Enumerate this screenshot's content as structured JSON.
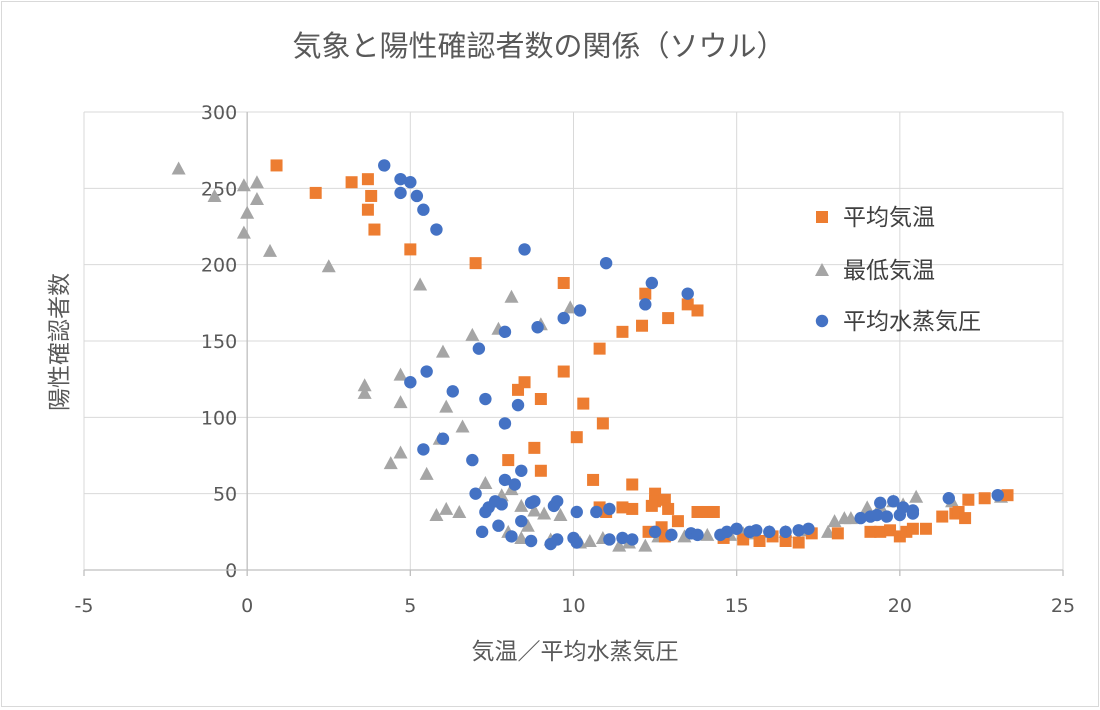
{
  "chart_data": {
    "type": "scatter",
    "title": "気象と陽性確認者数の関係（ソウル）",
    "xlabel": "気温／平均水蒸気圧",
    "ylabel": "陽性確認者数",
    "xlim": [
      -5,
      25
    ],
    "ylim": [
      0,
      300
    ],
    "xticks": [
      -5,
      0,
      5,
      10,
      15,
      20,
      25
    ],
    "yticks": [
      0,
      50,
      100,
      150,
      200,
      250,
      300
    ],
    "xtick_labels": [
      "-5",
      "0",
      "5",
      "10",
      "15",
      "20",
      "25"
    ],
    "ytick_labels": [
      "0",
      "50",
      "100",
      "150",
      "200",
      "250",
      "300"
    ],
    "grid": true,
    "legend_position": "right",
    "series": [
      {
        "name": "平均気温",
        "marker": "square",
        "color": "#ED7D31",
        "points": [
          [
            0.9,
            265
          ],
          [
            2.1,
            247
          ],
          [
            3.2,
            254
          ],
          [
            3.7,
            256
          ],
          [
            3.7,
            236
          ],
          [
            3.8,
            245
          ],
          [
            3.9,
            223
          ],
          [
            5.0,
            210
          ],
          [
            7.0,
            201
          ],
          [
            9.7,
            188
          ],
          [
            12.2,
            181
          ],
          [
            13.5,
            174
          ],
          [
            13.8,
            170
          ],
          [
            12.9,
            165
          ],
          [
            12.1,
            160
          ],
          [
            11.5,
            156
          ],
          [
            10.8,
            145
          ],
          [
            9.7,
            130
          ],
          [
            8.5,
            123
          ],
          [
            8.3,
            118
          ],
          [
            9.0,
            112
          ],
          [
            10.3,
            109
          ],
          [
            10.9,
            96
          ],
          [
            10.1,
            87
          ],
          [
            8.8,
            80
          ],
          [
            8.0,
            72
          ],
          [
            9.0,
            65
          ],
          [
            10.6,
            59
          ],
          [
            11.8,
            56
          ],
          [
            12.5,
            50
          ],
          [
            12.5,
            45
          ],
          [
            12.8,
            46
          ],
          [
            12.9,
            40
          ],
          [
            12.4,
            42
          ],
          [
            11.8,
            40
          ],
          [
            11.5,
            41
          ],
          [
            10.8,
            41
          ],
          [
            11.0,
            38
          ],
          [
            13.8,
            38
          ],
          [
            14.1,
            38
          ],
          [
            14.3,
            38
          ],
          [
            13.2,
            32
          ],
          [
            12.7,
            28
          ],
          [
            12.3,
            25
          ],
          [
            12.8,
            22
          ],
          [
            14.6,
            21
          ],
          [
            15.2,
            20
          ],
          [
            15.7,
            19
          ],
          [
            16.1,
            22
          ],
          [
            16.5,
            19
          ],
          [
            16.9,
            18
          ],
          [
            17.3,
            24
          ],
          [
            18.1,
            24
          ],
          [
            19.1,
            25
          ],
          [
            19.4,
            25
          ],
          [
            19.7,
            26
          ],
          [
            20.0,
            22
          ],
          [
            20.2,
            25
          ],
          [
            20.4,
            27
          ],
          [
            20.8,
            27
          ],
          [
            21.3,
            35
          ],
          [
            21.7,
            37
          ],
          [
            21.8,
            38
          ],
          [
            22.1,
            46
          ],
          [
            22.6,
            47
          ],
          [
            23.3,
            49
          ],
          [
            22.0,
            34
          ]
        ]
      },
      {
        "name": "最低気温",
        "marker": "triangle",
        "color": "#A5A5A5",
        "points": [
          [
            -2.1,
            263
          ],
          [
            -1.0,
            245
          ],
          [
            -0.1,
            252
          ],
          [
            0.3,
            254
          ],
          [
            0.0,
            234
          ],
          [
            0.3,
            243
          ],
          [
            -0.1,
            221
          ],
          [
            0.7,
            209
          ],
          [
            2.5,
            199
          ],
          [
            5.3,
            187
          ],
          [
            8.1,
            179
          ],
          [
            9.9,
            172
          ],
          [
            7.7,
            158
          ],
          [
            9.0,
            161
          ],
          [
            6.9,
            154
          ],
          [
            6.0,
            143
          ],
          [
            3.6,
            121
          ],
          [
            3.6,
            116
          ],
          [
            4.7,
            128
          ],
          [
            4.7,
            110
          ],
          [
            6.1,
            107
          ],
          [
            5.9,
            86
          ],
          [
            6.6,
            94
          ],
          [
            4.4,
            70
          ],
          [
            4.7,
            77
          ],
          [
            5.5,
            63
          ],
          [
            5.8,
            36
          ],
          [
            6.1,
            40
          ],
          [
            6.5,
            38
          ],
          [
            7.3,
            57
          ],
          [
            7.8,
            49
          ],
          [
            8.1,
            53
          ],
          [
            8.4,
            42
          ],
          [
            8.8,
            39
          ],
          [
            8.6,
            29
          ],
          [
            8.0,
            25
          ],
          [
            8.4,
            21
          ],
          [
            9.1,
            37
          ],
          [
            9.6,
            36
          ],
          [
            9.3,
            20
          ],
          [
            10.2,
            18
          ],
          [
            10.5,
            19
          ],
          [
            10.9,
            21
          ],
          [
            11.4,
            16
          ],
          [
            11.7,
            18
          ],
          [
            12.2,
            16
          ],
          [
            12.6,
            22
          ],
          [
            13.4,
            22
          ],
          [
            14.1,
            23
          ],
          [
            14.8,
            23
          ],
          [
            15.2,
            24
          ],
          [
            15.6,
            24
          ],
          [
            16.0,
            25
          ],
          [
            16.5,
            25
          ],
          [
            17.2,
            26
          ],
          [
            17.8,
            25
          ],
          [
            18.0,
            32
          ],
          [
            18.3,
            34
          ],
          [
            18.5,
            34
          ],
          [
            19.0,
            41
          ],
          [
            19.4,
            42
          ],
          [
            19.8,
            45
          ],
          [
            20.1,
            43
          ],
          [
            20.5,
            48
          ],
          [
            21.6,
            45
          ],
          [
            23.1,
            48
          ]
        ]
      },
      {
        "name": "平均水蒸気圧",
        "marker": "circle",
        "color": "#4472C4",
        "points": [
          [
            4.2,
            265
          ],
          [
            4.7,
            256
          ],
          [
            5.0,
            254
          ],
          [
            4.7,
            247
          ],
          [
            5.2,
            245
          ],
          [
            5.4,
            236
          ],
          [
            5.8,
            223
          ],
          [
            8.5,
            210
          ],
          [
            11.0,
            201
          ],
          [
            12.4,
            188
          ],
          [
            13.5,
            181
          ],
          [
            12.2,
            174
          ],
          [
            10.2,
            170
          ],
          [
            9.7,
            165
          ],
          [
            8.9,
            159
          ],
          [
            7.9,
            156
          ],
          [
            7.1,
            145
          ],
          [
            5.5,
            130
          ],
          [
            5.0,
            123
          ],
          [
            6.3,
            117
          ],
          [
            7.3,
            112
          ],
          [
            8.3,
            108
          ],
          [
            7.9,
            96
          ],
          [
            6.0,
            86
          ],
          [
            5.4,
            79
          ],
          [
            6.9,
            72
          ],
          [
            8.2,
            56
          ],
          [
            8.4,
            65
          ],
          [
            7.9,
            59
          ],
          [
            7.0,
            50
          ],
          [
            7.4,
            41
          ],
          [
            7.3,
            38
          ],
          [
            7.6,
            45
          ],
          [
            7.8,
            43
          ],
          [
            8.8,
            45
          ],
          [
            8.7,
            44
          ],
          [
            9.5,
            45
          ],
          [
            9.4,
            42
          ],
          [
            10.1,
            38
          ],
          [
            10.7,
            38
          ],
          [
            11.1,
            40
          ],
          [
            8.4,
            32
          ],
          [
            7.7,
            29
          ],
          [
            7.2,
            25
          ],
          [
            8.1,
            22
          ],
          [
            8.7,
            19
          ],
          [
            9.3,
            17
          ],
          [
            9.5,
            20
          ],
          [
            10.0,
            21
          ],
          [
            10.1,
            18
          ],
          [
            11.1,
            20
          ],
          [
            11.5,
            21
          ],
          [
            11.8,
            20
          ],
          [
            12.5,
            25
          ],
          [
            13.0,
            23
          ],
          [
            13.6,
            24
          ],
          [
            13.8,
            23
          ],
          [
            14.5,
            23
          ],
          [
            14.7,
            25
          ],
          [
            15.0,
            27
          ],
          [
            15.4,
            25
          ],
          [
            15.6,
            26
          ],
          [
            16.0,
            25
          ],
          [
            16.5,
            25
          ],
          [
            16.9,
            26
          ],
          [
            17.2,
            27
          ],
          [
            18.8,
            34
          ],
          [
            19.1,
            35
          ],
          [
            19.3,
            36
          ],
          [
            19.4,
            44
          ],
          [
            19.6,
            35
          ],
          [
            19.8,
            45
          ],
          [
            20.0,
            36
          ],
          [
            20.1,
            41
          ],
          [
            20.4,
            39
          ],
          [
            20.4,
            37
          ],
          [
            21.5,
            47
          ],
          [
            23.0,
            49
          ]
        ]
      }
    ]
  }
}
